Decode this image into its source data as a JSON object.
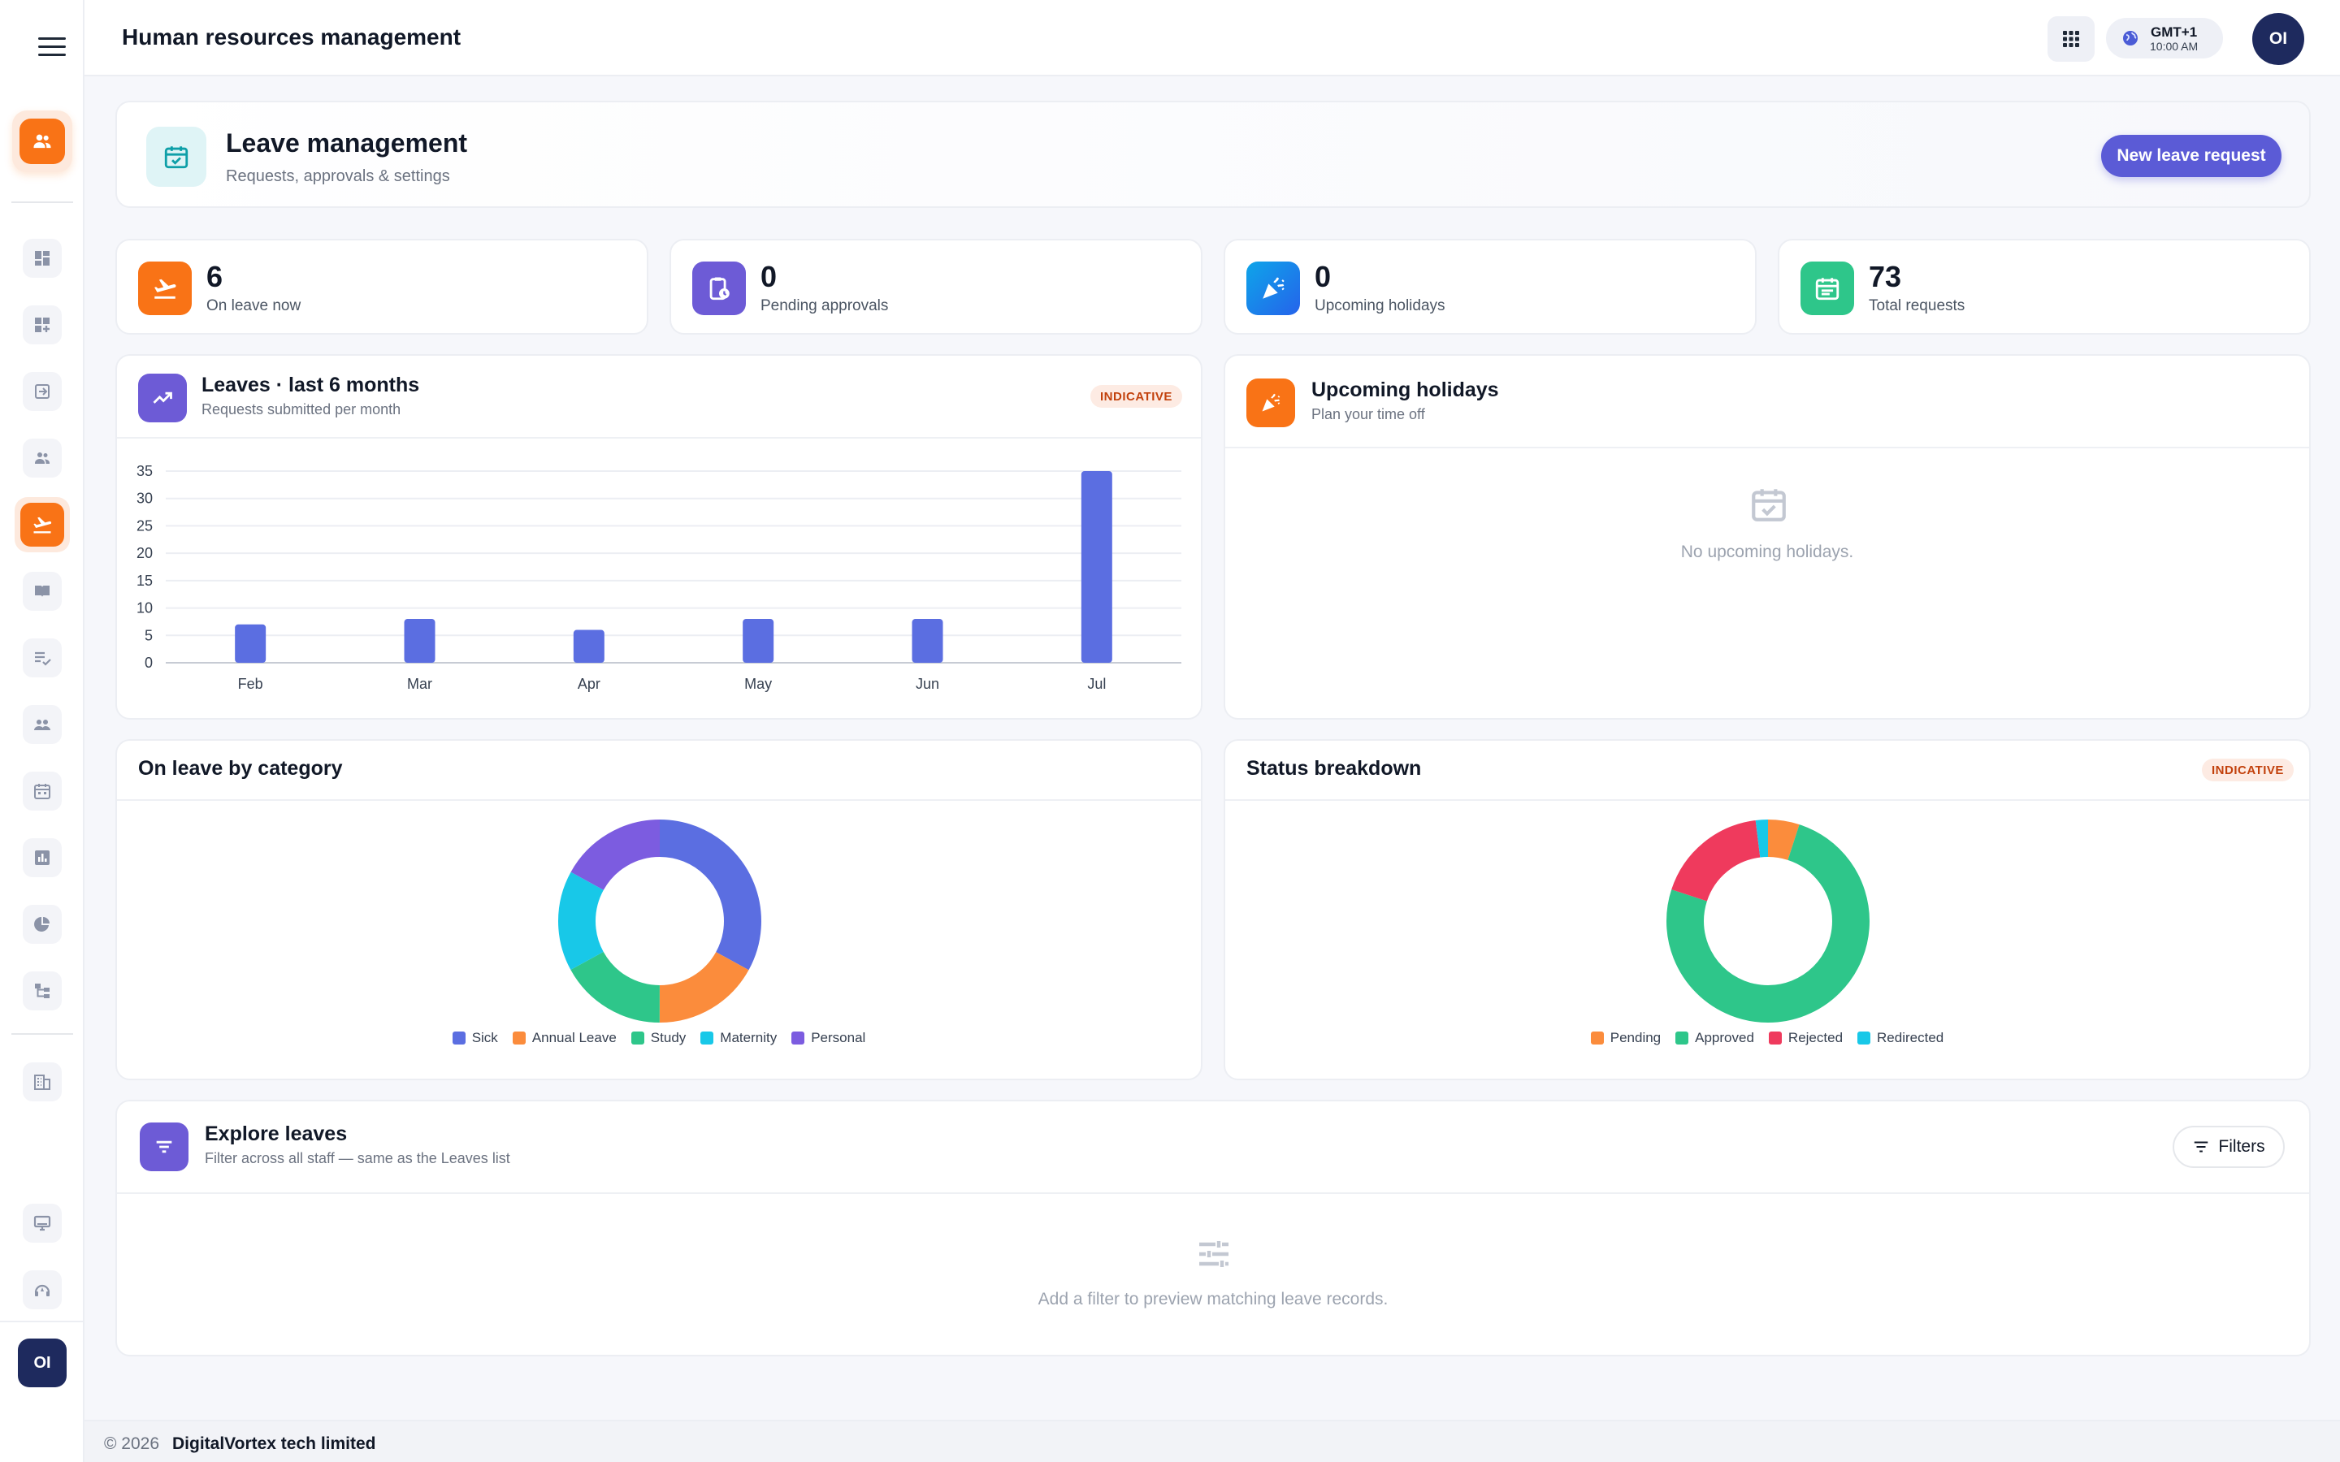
{
  "topbar": {
    "title": "Human resources management",
    "timezone": "GMT+1",
    "time": "10:00 AM",
    "avatar_initials": "OI"
  },
  "sidebar": {
    "avatar_initials": "OI",
    "items": [
      {
        "icon": "dashboard-icon"
      },
      {
        "icon": "add-widget-icon"
      },
      {
        "icon": "login-icon"
      },
      {
        "icon": "people-icon"
      },
      {
        "icon": "flight-takeoff-icon",
        "active": true
      },
      {
        "icon": "book-icon"
      },
      {
        "icon": "checklist-icon"
      },
      {
        "icon": "group-icon"
      },
      {
        "icon": "calendar-icon"
      },
      {
        "icon": "bar-chart-icon"
      },
      {
        "icon": "pie-chart-icon"
      },
      {
        "icon": "org-chart-icon"
      },
      {
        "icon": "building-icon"
      },
      {
        "icon": "monitor-icon"
      },
      {
        "icon": "support-icon"
      }
    ]
  },
  "hero": {
    "title": "Leave management",
    "subtitle": "Requests, approvals & settings",
    "button": "New leave request"
  },
  "stats": [
    {
      "value": "6",
      "label": "On leave now",
      "color": "#f97316"
    },
    {
      "value": "0",
      "label": "Pending approvals",
      "color": "#6d5bd6"
    },
    {
      "value": "0",
      "label": "Upcoming holidays",
      "color": "#0ea5e9"
    },
    {
      "value": "73",
      "label": "Total requests",
      "color": "#2ec68a"
    }
  ],
  "leaves_panel": {
    "title": "Leaves · last 6 months",
    "subtitle": "Requests submitted per month",
    "badge": "INDICATIVE"
  },
  "holidays_panel": {
    "title": "Upcoming holidays",
    "subtitle": "Plan your time off",
    "empty": "No upcoming holidays."
  },
  "category_panel": {
    "title": "On leave by category"
  },
  "status_panel": {
    "title": "Status breakdown",
    "badge": "INDICATIVE"
  },
  "explore_panel": {
    "title": "Explore leaves",
    "subtitle": "Filter across all staff — same as the Leaves list",
    "filters_button": "Filters",
    "empty": "Add a filter to preview matching leave records."
  },
  "footer": {
    "copyright": "© 2026",
    "company": "DigitalVortex tech limited"
  },
  "chart_data": [
    {
      "type": "bar",
      "categories": [
        "Feb",
        "Mar",
        "Apr",
        "May",
        "Jun",
        "Jul"
      ],
      "values": [
        7,
        8,
        6,
        8,
        8,
        35
      ],
      "ylim": [
        0,
        35
      ],
      "yticks": [
        0,
        5,
        10,
        15,
        20,
        25,
        30,
        35
      ],
      "grid": true,
      "color": "#5b6ee1"
    },
    {
      "type": "pie",
      "donut": true,
      "legend_position": "bottom",
      "labels": [
        "Sick",
        "Annual Leave",
        "Study",
        "Maternity",
        "Personal"
      ],
      "values": [
        33,
        17,
        17,
        16,
        17
      ],
      "colors": [
        "#5b6ee1",
        "#fb8c3c",
        "#2ec68a",
        "#18c8e8",
        "#7c5ce0"
      ]
    },
    {
      "type": "pie",
      "donut": true,
      "legend_position": "bottom",
      "labels": [
        "Pending",
        "Approved",
        "Rejected",
        "Redirected"
      ],
      "values": [
        5,
        75,
        18,
        2
      ],
      "colors": [
        "#fb8c3c",
        "#2ec68a",
        "#ef3a5d",
        "#18c8e8"
      ]
    }
  ]
}
